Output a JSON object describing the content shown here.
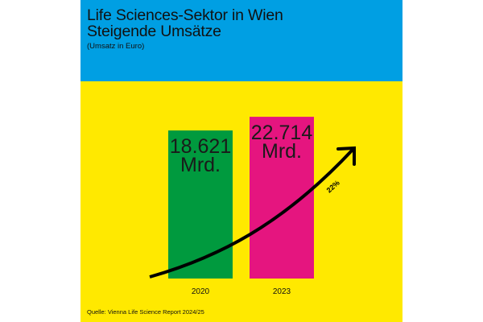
{
  "header": {
    "title_line1": "Life Sciences-Sektor in Wien",
    "title_line2": "Steigende Umsätze",
    "subtitle": "(Umsatz in Euro)"
  },
  "source": "Quelle: Vienna Life Science Report 2024/25",
  "colors": {
    "header_bg": "#009FE3",
    "panel_bg": "#FFE900",
    "bar_2020": "#009A3E",
    "bar_2023": "#E5157F",
    "arrow": "#000000"
  },
  "chart_data": {
    "type": "bar",
    "title": "Life Sciences-Sektor in Wien Steigende Umsätze",
    "subtitle": "(Umsatz in Euro)",
    "categories": [
      "2020",
      "2023"
    ],
    "values": [
      18.621,
      22.714
    ],
    "data_labels": [
      [
        "18.621",
        "Mrd."
      ],
      [
        "22.714",
        "Mrd."
      ]
    ],
    "unit": "Mrd. Euro",
    "annotation": {
      "label": "22%",
      "type": "growth-arrow"
    },
    "grid": false
  }
}
